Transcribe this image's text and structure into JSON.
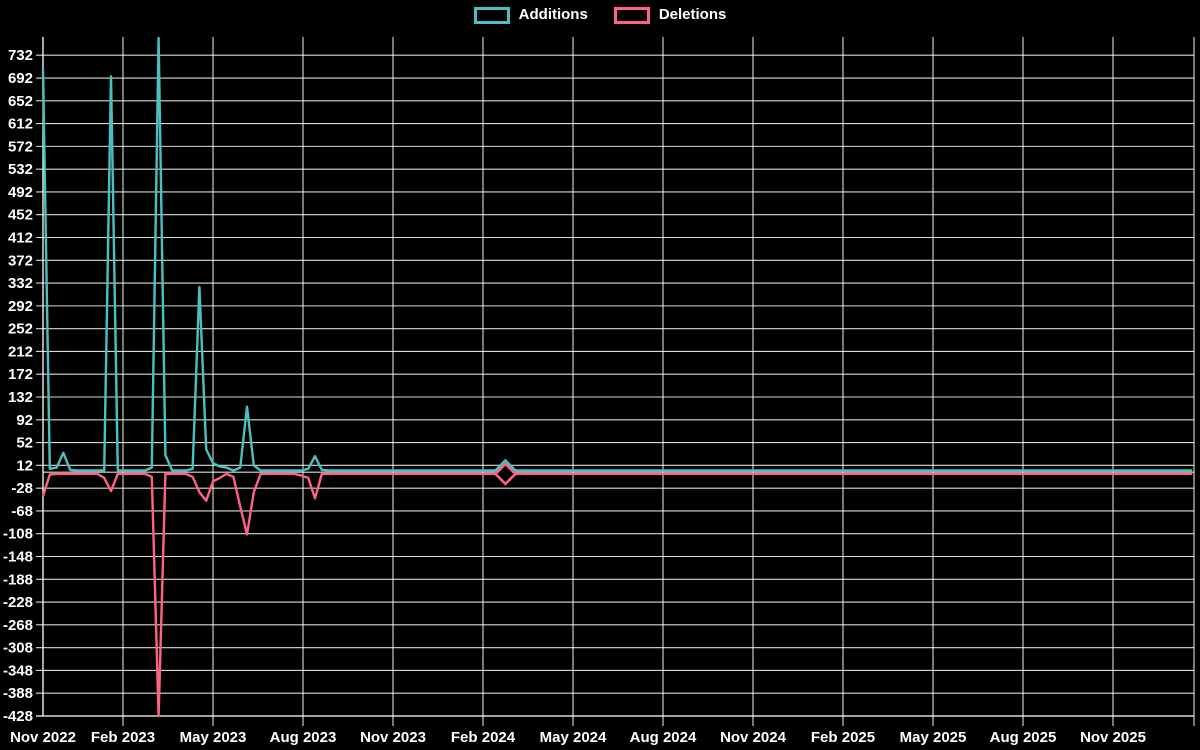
{
  "page": {
    "background": "#000000",
    "text_color": "#ffffff",
    "grid_color": "rgba(255,255,255,0.85)",
    "zero_line_color": "rgba(255,255,255,0.65)"
  },
  "legend": {
    "items": [
      {
        "label": "Additions",
        "color": "#4bc0c0"
      },
      {
        "label": "Deletions",
        "color": "#ff6384"
      }
    ]
  },
  "chart_data": {
    "type": "line",
    "title": "",
    "xlabel": "",
    "ylabel": "",
    "x_axis": {
      "unit": "week",
      "weeks_total": 170,
      "tick_labels": [
        "Nov 2022",
        "Feb 2023",
        "May 2023",
        "Aug 2023",
        "Nov 2023",
        "Feb 2024",
        "May 2024",
        "Aug 2024",
        "Nov 2024",
        "Feb 2025",
        "May 2025",
        "Aug 2025",
        "Nov 2025"
      ]
    },
    "y_axis": {
      "min": -428,
      "max": 764,
      "tick_step": 40,
      "tick_labels": [
        732,
        692,
        652,
        612,
        572,
        532,
        492,
        452,
        412,
        372,
        332,
        292,
        252,
        212,
        172,
        132,
        92,
        52,
        12,
        -28,
        -68,
        -108,
        -148,
        -188,
        -228,
        -268,
        -308,
        -348,
        -388,
        -428
      ]
    },
    "grid": {
      "vertical_every_quarter": true,
      "horizontal_every_tick": true,
      "zero_line": true
    },
    "series": [
      {
        "name": "Additions",
        "color": "#4bc0c0",
        "default_value": 3,
        "overrides": {
          "0": 708,
          "1": 6,
          "2": 8,
          "3": 34,
          "4": 4,
          "10": 695,
          "16": 8,
          "17": 762,
          "18": 30,
          "22": 6,
          "23": 325,
          "24": 40,
          "25": 16,
          "26": 10,
          "27": 8,
          "29": 8,
          "30": 115,
          "31": 12,
          "39": 6,
          "40": 28,
          "41": 4,
          "68": 3
        }
      },
      {
        "name": "Deletions",
        "color": "#ff6384",
        "default_value": -3,
        "overrides": {
          "0": -42,
          "1": -4,
          "9": -10,
          "10": -33,
          "16": -8,
          "17": -428,
          "22": -8,
          "23": -35,
          "24": -50,
          "25": -16,
          "26": -10,
          "28": -8,
          "29": -60,
          "30": -109,
          "31": -35,
          "38": -6,
          "39": -10,
          "40": -46,
          "68": -3
        }
      }
    ],
    "highlight_marker": {
      "shape": "diamond",
      "week": 68,
      "values": {
        "Additions": 3,
        "Deletions": -3
      }
    }
  }
}
